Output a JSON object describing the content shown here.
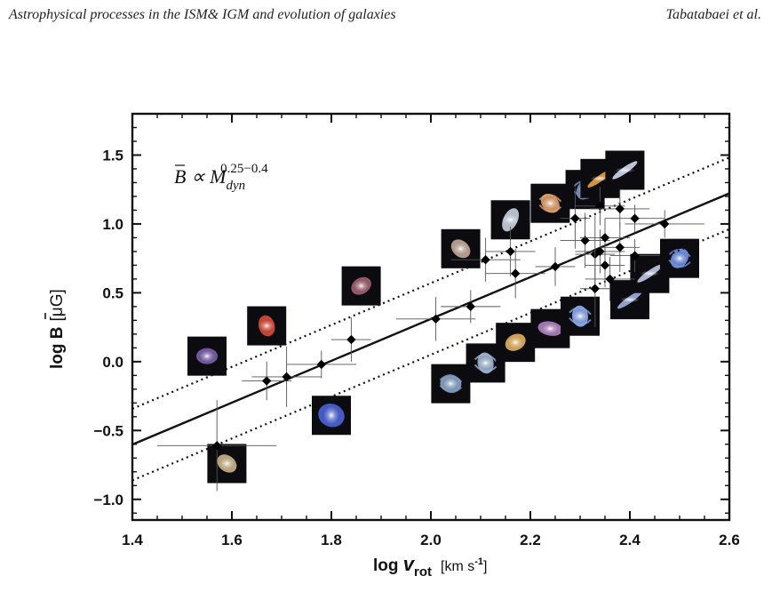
{
  "header": {
    "left": "Astrophysical processes in the ISM& IGM and evolution of galaxies",
    "right": "Tabatabaei et al."
  },
  "chart_data": {
    "type": "scatter",
    "xlabel": "log v_rot [km s^-1]",
    "ylabel": "log B [μG]",
    "xlabel_parts": {
      "main": "log ",
      "var": "v",
      "sub": "rot",
      "unit": "[km s",
      "unit_sup": "-1",
      "unit_end": "]"
    },
    "ylabel_parts": {
      "main": "log ",
      "var": "B",
      "unit": "[μG]"
    },
    "annotation": {
      "lhs": "B",
      "rel": " ∝ M",
      "sub": "dyn",
      "sup": "0.25−0.4"
    },
    "xlim": [
      1.4,
      2.6
    ],
    "ylim": [
      -1.15,
      1.8
    ],
    "xticks": [
      "1.4",
      "1.6",
      "1.8",
      "2.0",
      "2.2",
      "2.4",
      "2.6"
    ],
    "yticks": [
      "-1.0",
      "-0.5",
      "0.0",
      "0.5",
      "1.0",
      "1.5"
    ],
    "grid": false,
    "fit_line": {
      "slope": 1.52,
      "intercept": -2.73,
      "style": "solid"
    },
    "envelope_lines": [
      {
        "offset": 0.26,
        "style": "dotted"
      },
      {
        "offset": -0.26,
        "style": "dotted"
      }
    ],
    "points": [
      {
        "x": 1.57,
        "y": -0.61,
        "xerr": 0.12,
        "yerr": 0.33
      },
      {
        "x": 1.67,
        "y": -0.14,
        "xerr": 0.05,
        "yerr": 0.14
      },
      {
        "x": 1.71,
        "y": -0.11,
        "xerr": 0.07,
        "yerr": 0.22
      },
      {
        "x": 1.78,
        "y": -0.02,
        "xerr": 0.07,
        "yerr": 0.1
      },
      {
        "x": 1.84,
        "y": 0.16,
        "xerr": 0.04,
        "yerr": 0.16
      },
      {
        "x": 2.01,
        "y": 0.31,
        "xerr": 0.08,
        "yerr": 0.16
      },
      {
        "x": 2.08,
        "y": 0.4,
        "xerr": 0.06,
        "yerr": 0.12
      },
      {
        "x": 2.11,
        "y": 0.74,
        "xerr": 0.07,
        "yerr": 0.16
      },
      {
        "x": 2.16,
        "y": 0.8,
        "xerr": 0.05,
        "yerr": 0.18
      },
      {
        "x": 2.17,
        "y": 0.64,
        "xerr": 0.06,
        "yerr": 0.18
      },
      {
        "x": 2.25,
        "y": 0.69,
        "xerr": 0.04,
        "yerr": 0.14
      },
      {
        "x": 2.29,
        "y": 1.04,
        "xerr": 0.03,
        "yerr": 0.22
      },
      {
        "x": 2.31,
        "y": 0.88,
        "xerr": 0.05,
        "yerr": 0.2
      },
      {
        "x": 2.33,
        "y": 0.78,
        "xerr": 0.04,
        "yerr": 0.28
      },
      {
        "x": 2.33,
        "y": 0.53,
        "xerr": 0.03,
        "yerr": 0.28
      },
      {
        "x": 2.34,
        "y": 0.8,
        "xerr": 0.05,
        "yerr": 0.16
      },
      {
        "x": 2.34,
        "y": 1.13,
        "xerr": 0.05,
        "yerr": 0.14
      },
      {
        "x": 2.35,
        "y": 0.9,
        "xerr": 0.05,
        "yerr": 0.14
      },
      {
        "x": 2.35,
        "y": 0.7,
        "xerr": 0.04,
        "yerr": 0.16
      },
      {
        "x": 2.36,
        "y": 0.6,
        "xerr": 0.05,
        "yerr": 0.16
      },
      {
        "x": 2.38,
        "y": 1.11,
        "xerr": 0.06,
        "yerr": 0.14
      },
      {
        "x": 2.38,
        "y": 0.83,
        "xerr": 0.04,
        "yerr": 0.18
      },
      {
        "x": 2.41,
        "y": 1.04,
        "xerr": 0.06,
        "yerr": 0.1
      },
      {
        "x": 2.41,
        "y": 0.77,
        "xerr": 0.05,
        "yerr": 0.12
      },
      {
        "x": 2.47,
        "y": 1.0,
        "xerr": 0.08,
        "yerr": 0.1
      }
    ],
    "galaxy_thumbnails": [
      {
        "x": 1.55,
        "y": 0.04,
        "color": "#7a5fa8",
        "shape": "blob"
      },
      {
        "x": 1.59,
        "y": -0.74,
        "color": "#c9b48a",
        "shape": "blob"
      },
      {
        "x": 1.67,
        "y": 0.26,
        "color": "#d84a3a",
        "shape": "blob"
      },
      {
        "x": 1.8,
        "y": -0.39,
        "color": "#4b63d6",
        "shape": "irregular"
      },
      {
        "x": 1.86,
        "y": 0.55,
        "color": "#a06070",
        "shape": "blob"
      },
      {
        "x": 2.04,
        "y": -0.16,
        "color": "#8aa4c8",
        "shape": "spiral"
      },
      {
        "x": 2.06,
        "y": 0.82,
        "color": "#c0a898",
        "shape": "blob"
      },
      {
        "x": 2.11,
        "y": -0.01,
        "color": "#9eb4d0",
        "shape": "spiral"
      },
      {
        "x": 2.16,
        "y": 1.03,
        "color": "#c8d0e0",
        "shape": "disk"
      },
      {
        "x": 2.17,
        "y": 0.14,
        "color": "#e0b060",
        "shape": "blob"
      },
      {
        "x": 2.24,
        "y": 0.24,
        "color": "#b080c0",
        "shape": "disk"
      },
      {
        "x": 2.24,
        "y": 1.15,
        "color": "#e0a070",
        "shape": "spiral"
      },
      {
        "x": 2.3,
        "y": 0.33,
        "color": "#8aa8e8",
        "shape": "spiral"
      },
      {
        "x": 2.31,
        "y": 1.25,
        "color": "#8090c0",
        "shape": "spiral"
      },
      {
        "x": 2.34,
        "y": 1.33,
        "color": "#e8a040",
        "shape": "edge"
      },
      {
        "x": 2.39,
        "y": 1.39,
        "color": "#d0d8f0",
        "shape": "edge"
      },
      {
        "x": 2.4,
        "y": 0.45,
        "color": "#a0b0e0",
        "shape": "edge"
      },
      {
        "x": 2.44,
        "y": 0.64,
        "color": "#c0c8e8",
        "shape": "edge"
      },
      {
        "x": 2.5,
        "y": 0.75,
        "color": "#7090e0",
        "shape": "spiral"
      }
    ]
  }
}
